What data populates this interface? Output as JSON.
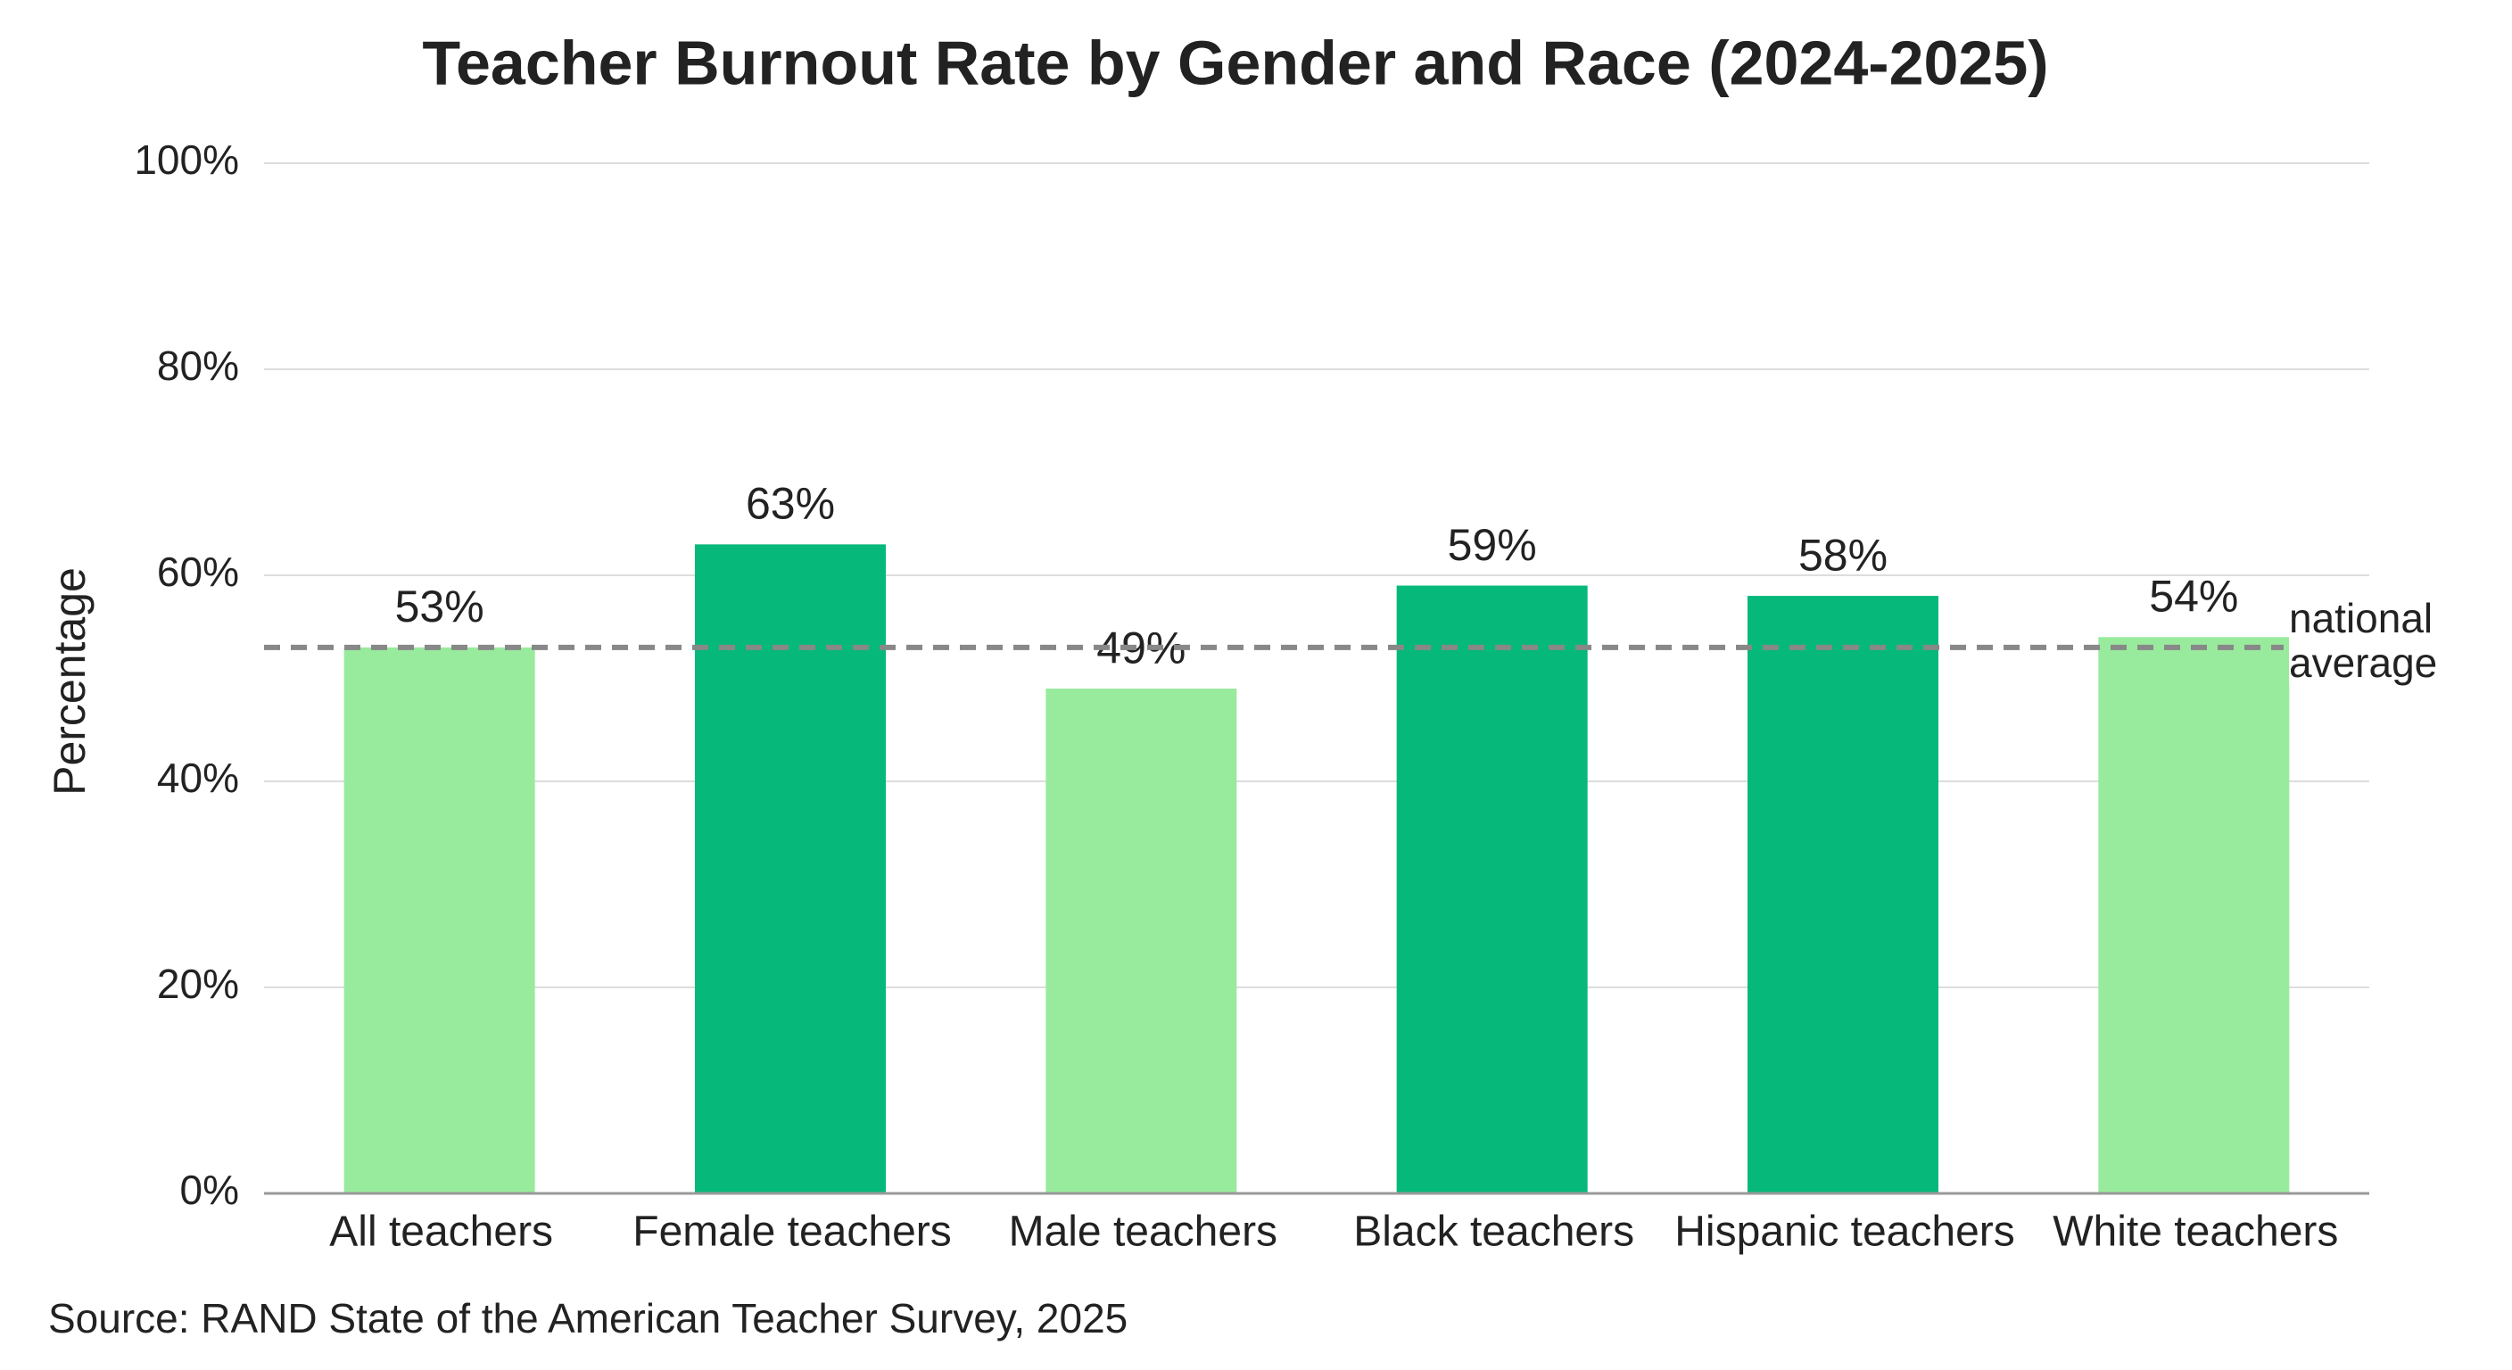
{
  "chart_data": {
    "type": "bar",
    "title": "Teacher Burnout Rate by Gender and Race (2024-2025)",
    "ylabel": "Percentage",
    "categories": [
      "All teachers",
      "Female teachers",
      "Male teachers",
      "Black teachers",
      "Hispanic teachers",
      "White teachers"
    ],
    "values": [
      53,
      63,
      49,
      59,
      58,
      54
    ],
    "value_labels": [
      "53%",
      "63%",
      "49%",
      "59%",
      "58%",
      "54%"
    ],
    "colors": [
      "#98eb9d",
      "#06b87a",
      "#98eb9d",
      "#06b87a",
      "#06b87a",
      "#98eb9d"
    ],
    "ylim": [
      0,
      100
    ],
    "yticks": [
      {
        "value": 0,
        "label": "0%"
      },
      {
        "value": 20,
        "label": "20%"
      },
      {
        "value": 40,
        "label": "40%"
      },
      {
        "value": 60,
        "label": "60%"
      },
      {
        "value": 80,
        "label": "80%"
      },
      {
        "value": 100,
        "label": "100%"
      }
    ],
    "grid": true,
    "reference_line": {
      "value": 53,
      "label": "national average"
    },
    "source": "Source: RAND State of the American Teacher Survey, 2025"
  }
}
